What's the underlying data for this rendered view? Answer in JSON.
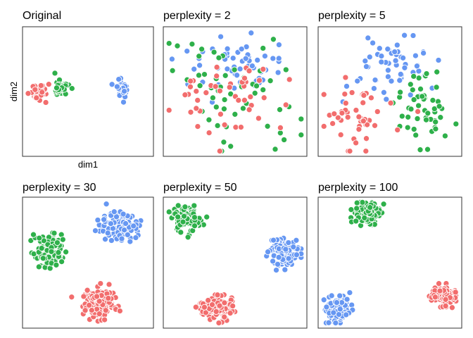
{
  "chart_data": [
    {
      "type": "scatter",
      "title": "Original",
      "xlabel": "dim1",
      "ylabel": "dim2",
      "clusters": [
        {
          "group": "red",
          "cx": 0.12,
          "cy": 0.5,
          "sx": 0.035,
          "sy": 0.035,
          "n": 40
        },
        {
          "group": "green",
          "cx": 0.3,
          "cy": 0.48,
          "sx": 0.035,
          "sy": 0.035,
          "n": 40
        },
        {
          "group": "blue",
          "cx": 0.76,
          "cy": 0.48,
          "sx": 0.028,
          "sy": 0.035,
          "n": 40
        }
      ]
    },
    {
      "type": "scatter",
      "title": "perplexity = 2",
      "xlabel": "",
      "ylabel": "",
      "clusters": [
        {
          "group": "blue",
          "cx": 0.55,
          "cy": 0.28,
          "sx": 0.2,
          "sy": 0.13,
          "n": 55
        },
        {
          "group": "green",
          "cx": 0.52,
          "cy": 0.55,
          "sx": 0.22,
          "sy": 0.2,
          "n": 55
        },
        {
          "group": "red",
          "cx": 0.45,
          "cy": 0.62,
          "sx": 0.24,
          "sy": 0.18,
          "n": 45
        }
      ]
    },
    {
      "type": "scatter",
      "title": "perplexity = 5",
      "xlabel": "",
      "ylabel": "",
      "clusters": [
        {
          "group": "blue",
          "cx": 0.5,
          "cy": 0.3,
          "sx": 0.16,
          "sy": 0.13,
          "n": 55
        },
        {
          "group": "green",
          "cx": 0.73,
          "cy": 0.62,
          "sx": 0.1,
          "sy": 0.14,
          "n": 50
        },
        {
          "group": "red",
          "cx": 0.27,
          "cy": 0.72,
          "sx": 0.15,
          "sy": 0.11,
          "n": 50
        }
      ]
    },
    {
      "type": "scatter",
      "title": "perplexity = 30",
      "xlabel": "",
      "ylabel": "",
      "clusters": [
        {
          "group": "blue",
          "cx": 0.74,
          "cy": 0.22,
          "sx": 0.068,
          "sy": 0.06,
          "n": 130
        },
        {
          "group": "green",
          "cx": 0.2,
          "cy": 0.4,
          "sx": 0.055,
          "sy": 0.06,
          "n": 110
        },
        {
          "group": "red",
          "cx": 0.58,
          "cy": 0.8,
          "sx": 0.06,
          "sy": 0.06,
          "n": 130
        }
      ]
    },
    {
      "type": "scatter",
      "title": "perplexity = 50",
      "xlabel": "",
      "ylabel": "",
      "clusters": [
        {
          "group": "green",
          "cx": 0.16,
          "cy": 0.16,
          "sx": 0.055,
          "sy": 0.05,
          "n": 110
        },
        {
          "group": "blue",
          "cx": 0.84,
          "cy": 0.42,
          "sx": 0.05,
          "sy": 0.05,
          "n": 130
        },
        {
          "group": "red",
          "cx": 0.38,
          "cy": 0.84,
          "sx": 0.055,
          "sy": 0.045,
          "n": 120
        }
      ]
    },
    {
      "type": "scatter",
      "title": "perplexity = 100",
      "xlabel": "",
      "ylabel": "",
      "clusters": [
        {
          "group": "green",
          "cx": 0.34,
          "cy": 0.12,
          "sx": 0.05,
          "sy": 0.045,
          "n": 110
        },
        {
          "group": "red",
          "cx": 0.88,
          "cy": 0.75,
          "sx": 0.045,
          "sy": 0.035,
          "n": 110
        },
        {
          "group": "blue",
          "cx": 0.13,
          "cy": 0.86,
          "sx": 0.04,
          "sy": 0.045,
          "n": 120
        }
      ]
    }
  ],
  "colors": {
    "red": "#F26D6D",
    "green": "#2EB04A",
    "blue": "#6697F2"
  }
}
